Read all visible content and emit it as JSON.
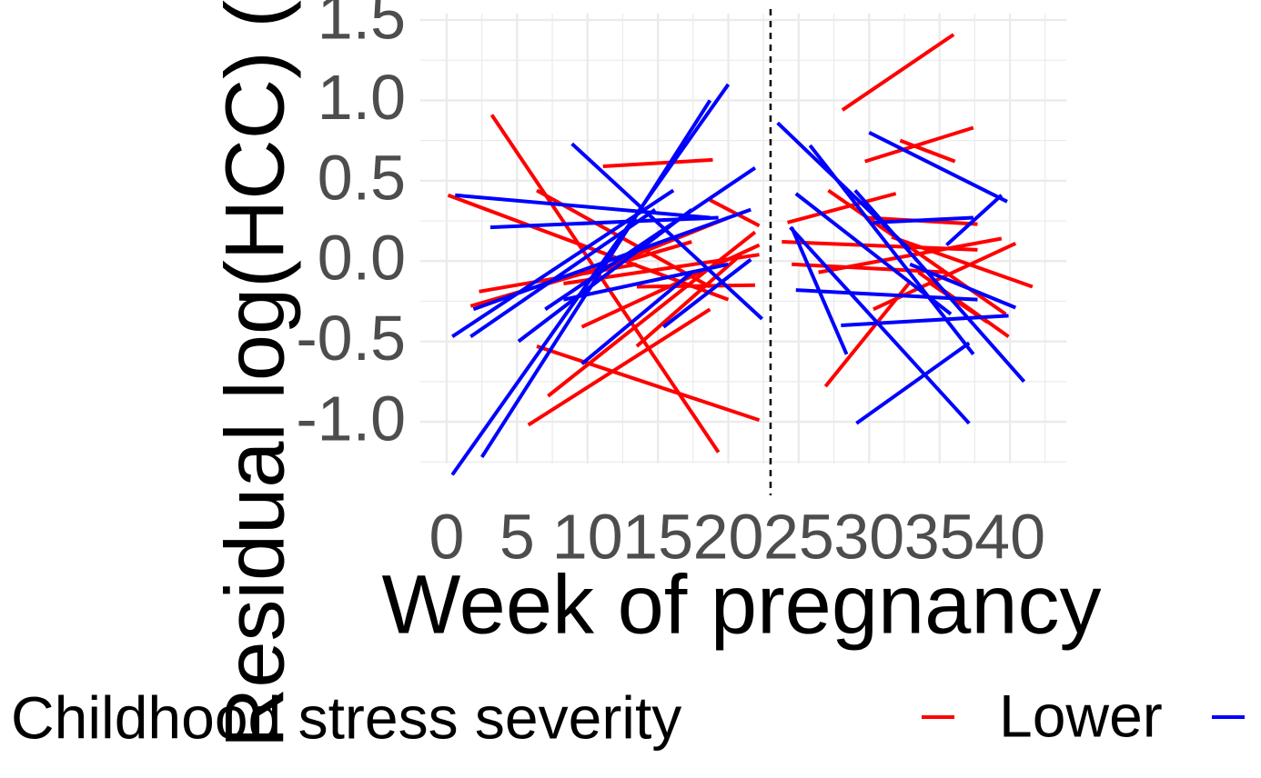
{
  "chart_data": {
    "type": "segments",
    "x_label": "Week of pregnancy",
    "y_label": "Residual log(HCC) (",
    "legend_title": "Childhood stress severity",
    "xlim": [
      -1.87,
      44.0
    ],
    "ylim": [
      -1.26,
      1.54
    ],
    "xticks": [
      0,
      5,
      10,
      15,
      20,
      25,
      30,
      35,
      40
    ],
    "yticks": [
      {
        "value": -1,
        "label": "-1.0"
      },
      -0.5,
      {
        "value": 0,
        "label": "0.0"
      },
      0.5,
      {
        "value": 1,
        "label": "1.0"
      },
      1.5
    ],
    "grid": true,
    "minor_grid": true,
    "vline": 23,
    "series": [
      {
        "name": "Lower",
        "color": "#ff0000",
        "segments": [
          {
            "x": [
              0.1,
              20
            ],
            "values": [
              0.41,
              -0.24
            ]
          },
          {
            "x": [
              3.2,
              19.3
            ],
            "values": [
              0.91,
              -1.19
            ]
          },
          {
            "x": [
              5.8,
              18.7
            ],
            "values": [
              -1.02,
              -0.3
            ]
          },
          {
            "x": [
              6.4,
              22.2
            ],
            "values": [
              -0.53,
              -0.99
            ]
          },
          {
            "x": [
              1.7,
              17.4
            ],
            "values": [
              -0.28,
              0.12
            ]
          },
          {
            "x": [
              11.1,
              18.9
            ],
            "values": [
              0.59,
              0.63
            ]
          },
          {
            "x": [
              7.2,
              21.9
            ],
            "values": [
              -0.84,
              0.18
            ]
          },
          {
            "x": [
              2.3,
              13.5
            ],
            "values": [
              -0.19,
              -0.02
            ]
          },
          {
            "x": [
              9.6,
              22.2
            ],
            "values": [
              -0.41,
              0.1
            ]
          },
          {
            "x": [
              13.5,
              20.9
            ],
            "values": [
              -0.53,
              0.04
            ]
          },
          {
            "x": [
              6.4,
              18.7
            ],
            "values": [
              0.44,
              -0.16
            ]
          },
          {
            "x": [
              8.3,
              22.2
            ],
            "values": [
              -0.14,
              0.04
            ]
          },
          {
            "x": [
              18.7,
              22.2
            ],
            "values": [
              0.38,
              0.22
            ]
          },
          {
            "x": [
              13.5,
              21.9
            ],
            "values": [
              -0.16,
              -0.15
            ]
          },
          {
            "x": [
              10.3,
              20
            ],
            "values": [
              -0.07,
              0.27
            ]
          },
          {
            "x": [
              28.1,
              36
            ],
            "values": [
              0.94,
              1.41
            ]
          },
          {
            "x": [
              29.7,
              37.4
            ],
            "values": [
              0.62,
              0.83
            ]
          },
          {
            "x": [
              32.2,
              36.1
            ],
            "values": [
              0.75,
              0.62
            ]
          },
          {
            "x": [
              26.9,
              32.9
            ],
            "values": [
              -0.78,
              -0.13
            ]
          },
          {
            "x": [
              24.2,
              31.9
            ],
            "values": [
              0.24,
              0.42
            ]
          },
          {
            "x": [
              24.5,
              35.5
            ],
            "values": [
              -0.02,
              -0.07
            ]
          },
          {
            "x": [
              27.1,
              39.7
            ],
            "values": [
              0.44,
              -0.33
            ]
          },
          {
            "x": [
              23.8,
              37.7
            ],
            "values": [
              0.12,
              0.07
            ]
          },
          {
            "x": [
              30.3,
              40.4
            ],
            "values": [
              -0.3,
              0.11
            ]
          },
          {
            "x": [
              31.6,
              41.6
            ],
            "values": [
              0.15,
              -0.16
            ]
          },
          {
            "x": [
              33.5,
              39.9
            ],
            "values": [
              -0.07,
              -0.47
            ]
          },
          {
            "x": [
              29.7,
              37.7
            ],
            "values": [
              0.27,
              0.23
            ]
          },
          {
            "x": [
              26.4,
              39.4
            ],
            "values": [
              -0.07,
              0.14
            ]
          },
          {
            "x": [
              34.2,
              38.4
            ],
            "values": [
              -0.13,
              -0.38
            ]
          }
        ]
      },
      {
        "color": "#0000ff",
        "segments": [
          {
            "x": [
              0.4,
              20
            ],
            "values": [
              -1.33,
              1.1
            ]
          },
          {
            "x": [
              2.5,
              18.7
            ],
            "values": [
              -1.22,
              1.0
            ]
          },
          {
            "x": [
              0.6,
              18.7
            ],
            "values": [
              0.41,
              0.27
            ]
          },
          {
            "x": [
              0.4,
              16.1
            ],
            "values": [
              -0.47,
              0.44
            ]
          },
          {
            "x": [
              1.9,
              21.6
            ],
            "values": [
              -0.3,
              0.32
            ]
          },
          {
            "x": [
              8.9,
              22.4
            ],
            "values": [
              0.73,
              -0.36
            ]
          },
          {
            "x": [
              3.1,
              19.3
            ],
            "values": [
              0.21,
              0.27
            ]
          },
          {
            "x": [
              5.1,
              17.4
            ],
            "values": [
              -0.5,
              0.32
            ]
          },
          {
            "x": [
              7.0,
              21.9
            ],
            "values": [
              -0.3,
              0.58
            ]
          },
          {
            "x": [
              9.6,
              17.4
            ],
            "values": [
              -0.64,
              -0.07
            ]
          },
          {
            "x": [
              15.4,
              21.6
            ],
            "values": [
              -0.41,
              0.01
            ]
          },
          {
            "x": [
              1.7,
              14.8
            ],
            "values": [
              -0.47,
              0.32
            ]
          },
          {
            "x": [
              8.3,
              20
            ],
            "values": [
              -0.24,
              -0.02
            ]
          },
          {
            "x": [
              23.5,
              32.9
            ],
            "values": [
              0.86,
              0.07
            ]
          },
          {
            "x": [
              29.1,
              37.1
            ],
            "values": [
              -1.01,
              -0.51
            ]
          },
          {
            "x": [
              24.4,
              37.1
            ],
            "values": [
              0.21,
              -1.01
            ]
          },
          {
            "x": [
              30,
              39.8
            ],
            "values": [
              0.8,
              0.37
            ]
          },
          {
            "x": [
              25.8,
              37.4
            ],
            "values": [
              0.72,
              -0.58
            ]
          },
          {
            "x": [
              24.8,
              37.7
            ],
            "values": [
              -0.18,
              -0.24
            ]
          },
          {
            "x": [
              28,
              39.9
            ],
            "values": [
              -0.4,
              -0.34
            ]
          },
          {
            "x": [
              24.8,
              35.8
            ],
            "values": [
              0.42,
              -0.33
            ]
          },
          {
            "x": [
              29,
              41
            ],
            "values": [
              0.44,
              -0.75
            ]
          },
          {
            "x": [
              24.5,
              28.4
            ],
            "values": [
              0.21,
              -0.58
            ]
          },
          {
            "x": [
              30.3,
              37.4
            ],
            "values": [
              0.24,
              0.27
            ]
          },
          {
            "x": [
              32.9,
              40.4
            ],
            "values": [
              -0.02,
              -0.29
            ]
          },
          {
            "x": [
              35.5,
              39.4
            ],
            "values": [
              0.1,
              0.41
            ]
          }
        ]
      }
    ]
  }
}
